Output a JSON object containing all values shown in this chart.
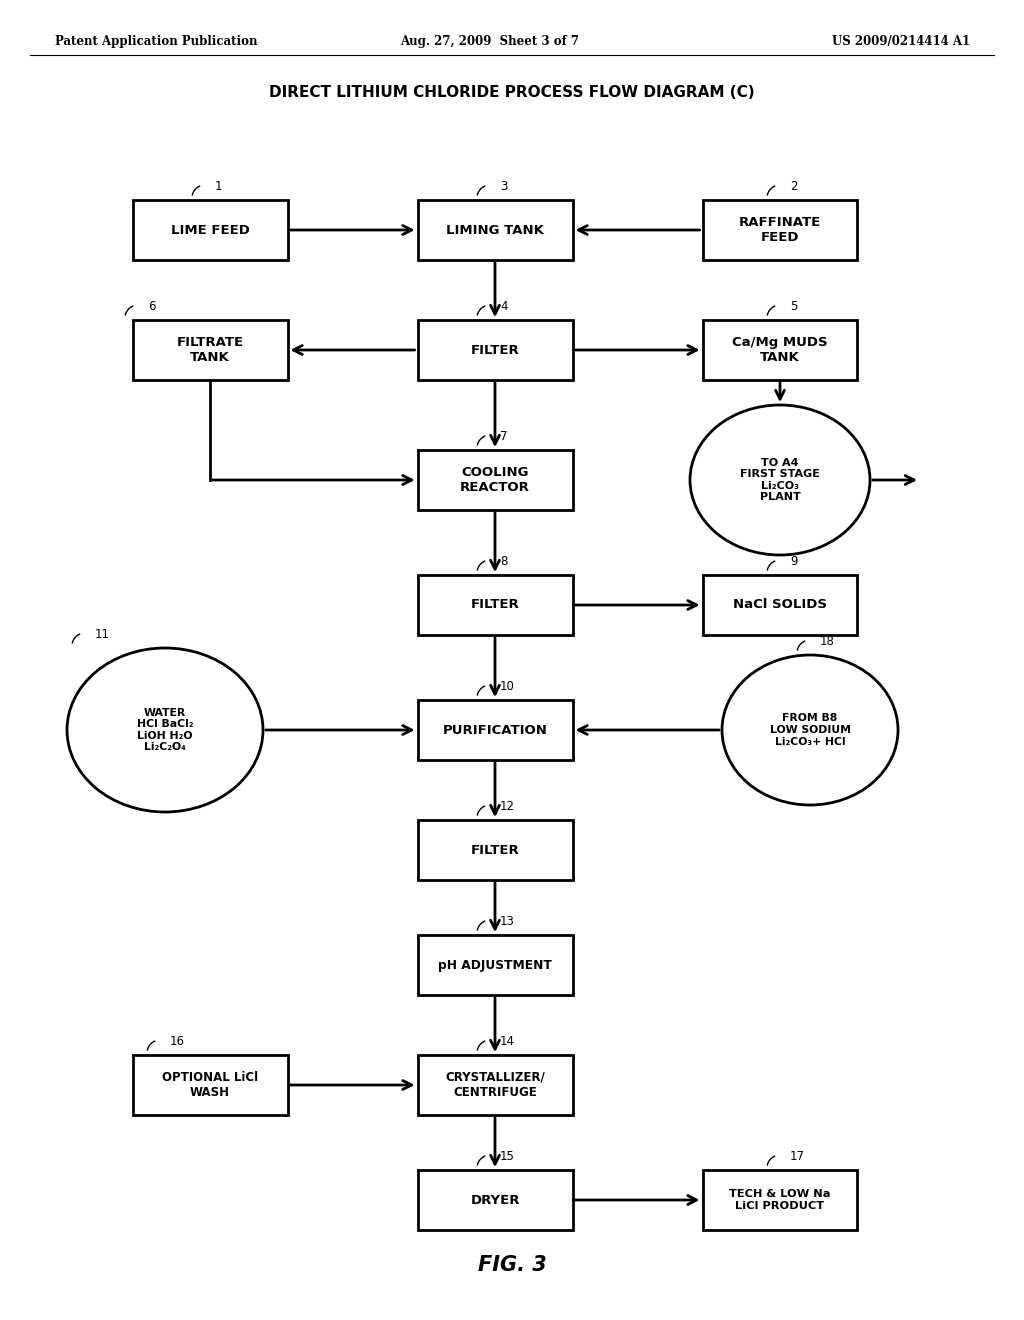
{
  "title": "DIRECT LITHIUM CHLORIDE PROCESS FLOW DIAGRAM (C)",
  "header_left": "Patent Application Publication",
  "header_mid": "Aug. 27, 2009  Sheet 3 of 7",
  "header_right": "US 2009/0214414 A1",
  "footer": "FIG. 3",
  "bg_color": "#ffffff"
}
